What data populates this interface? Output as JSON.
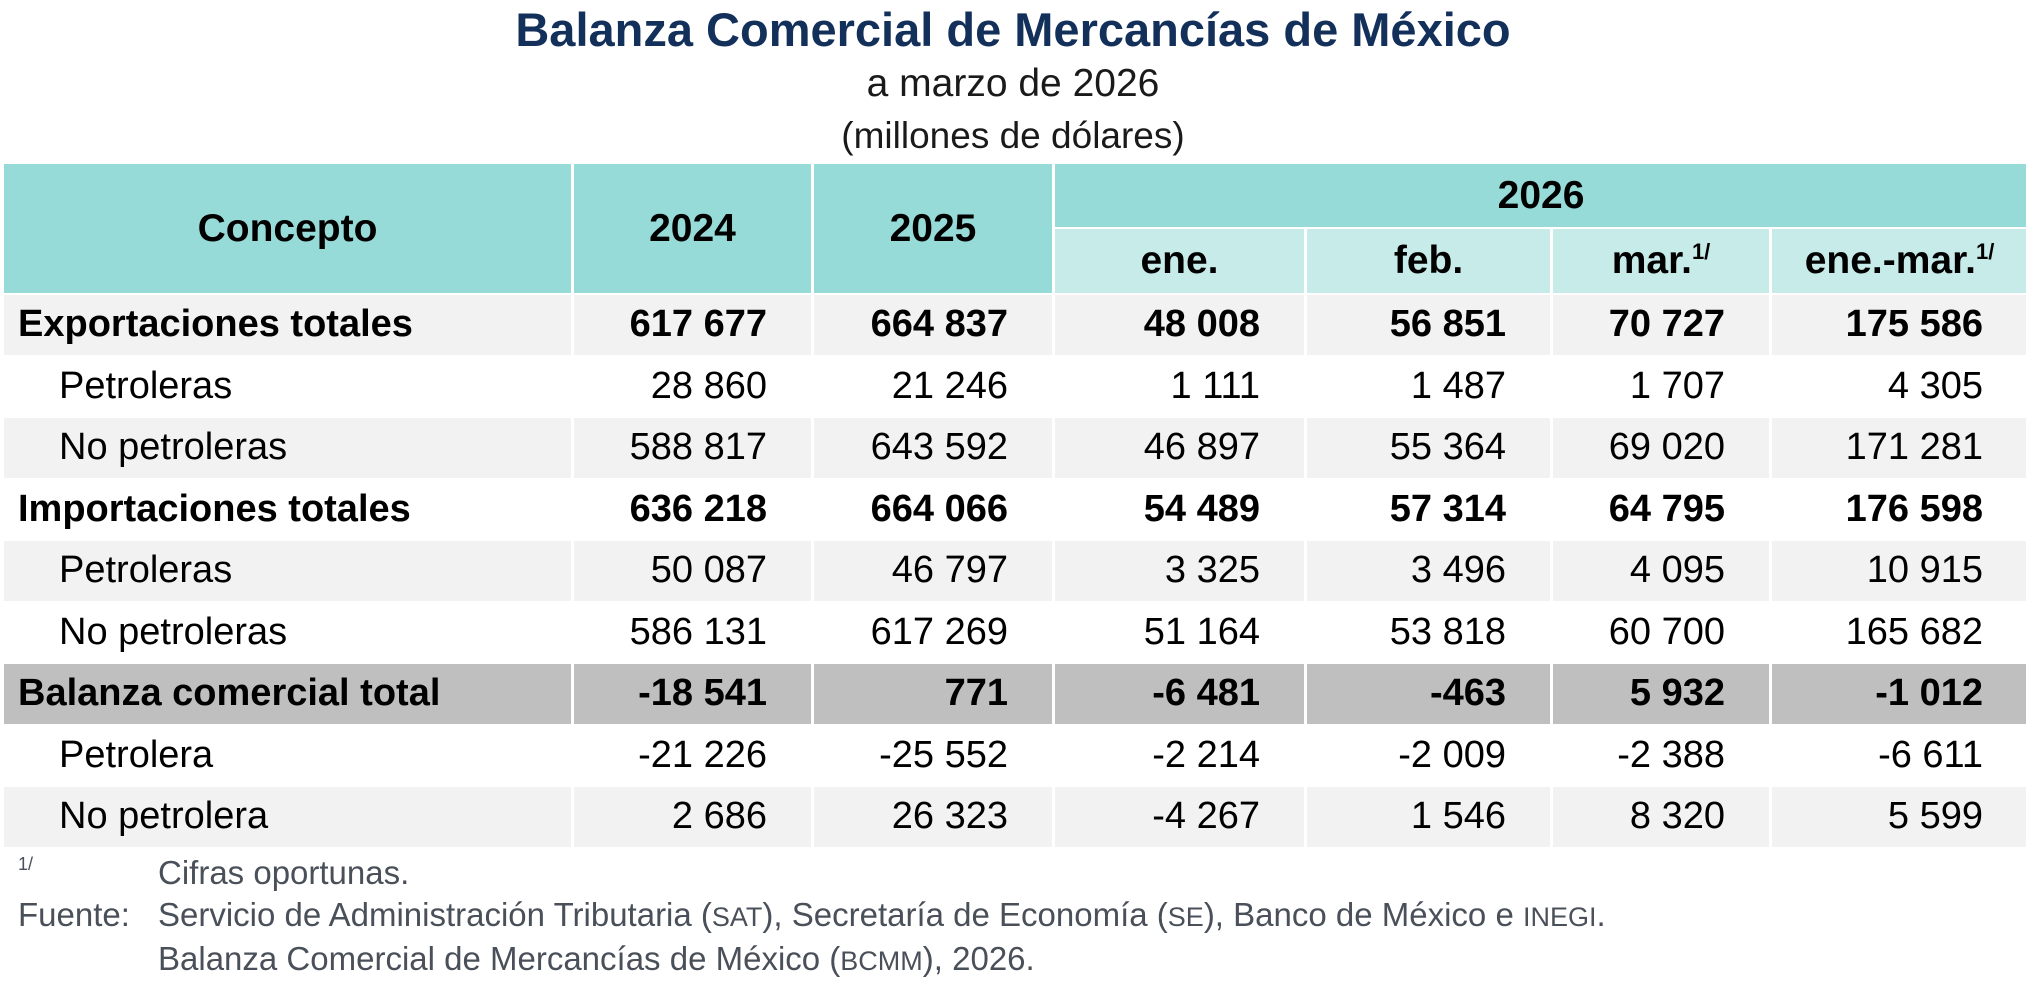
{
  "header": {
    "title": "Balanza Comercial de Mercancías de México",
    "subtitle": "a marzo de 2026",
    "units": "(millones de dólares)"
  },
  "table": {
    "col_concept": "Concepto",
    "col_2024": "2024",
    "col_2025": "2025",
    "col_2026": "2026",
    "months": [
      {
        "label": "ene.",
        "sup": ""
      },
      {
        "label": "feb.",
        "sup": ""
      },
      {
        "label": "mar.",
        "sup": "1/"
      },
      {
        "label": "ene.-mar.",
        "sup": "1/"
      }
    ],
    "rows": [
      {
        "concepto": "Exportaciones totales",
        "y2024": "617 677",
        "y2025": "664 837",
        "ene": "48 008",
        "feb": "56 851",
        "mar": "70 727",
        "ene_mar": "175 586"
      },
      {
        "concepto": "Petroleras",
        "y2024": "28 860",
        "y2025": "21 246",
        "ene": "1 111",
        "feb": "1 487",
        "mar": "1 707",
        "ene_mar": "4 305"
      },
      {
        "concepto": "No petroleras",
        "y2024": "588 817",
        "y2025": "643 592",
        "ene": "46 897",
        "feb": "55 364",
        "mar": "69 020",
        "ene_mar": "171 281"
      },
      {
        "concepto": "Importaciones totales",
        "y2024": "636 218",
        "y2025": "664 066",
        "ene": "54 489",
        "feb": "57 314",
        "mar": "64 795",
        "ene_mar": "176 598"
      },
      {
        "concepto": "Petroleras",
        "y2024": "50 087",
        "y2025": "46 797",
        "ene": "3 325",
        "feb": "3 496",
        "mar": "4 095",
        "ene_mar": "10 915"
      },
      {
        "concepto": "No petroleras",
        "y2024": "586 131",
        "y2025": "617 269",
        "ene": "51 164",
        "feb": "53 818",
        "mar": "60 700",
        "ene_mar": "165 682"
      },
      {
        "concepto": "Balanza comercial total",
        "y2024": "-18 541",
        "y2025": "771",
        "ene": "-6 481",
        "feb": "-463",
        "mar": "5 932",
        "ene_mar": "-1 012"
      },
      {
        "concepto": "Petrolera",
        "y2024": "-21 226",
        "y2025": "-25 552",
        "ene": "-2 214",
        "feb": "-2 009",
        "mar": "-2 388",
        "ene_mar": "-6 611"
      },
      {
        "concepto": "No petrolera",
        "y2024": "2 686",
        "y2025": "26 323",
        "ene": "-4 267",
        "feb": "1 546",
        "mar": "8 320",
        "ene_mar": "5 599"
      }
    ]
  },
  "notes": {
    "footnote_key": "1/",
    "footnote_text": "Cifras oportunas.",
    "source_key": "Fuente:",
    "source_line1_a": "Servicio de Administración Tributaria (",
    "source_line1_sat": "SAT",
    "source_line1_b": "), Secretaría de Economía (",
    "source_line1_se": "SE",
    "source_line1_c": "), Banco de México e ",
    "source_line1_inegi": "INEGI",
    "source_line1_d": ".",
    "source_line2_a": "Balanza Comercial de Mercancías de México (",
    "source_line2_bcmm": "BCMM",
    "source_line2_b": "), 2026."
  },
  "colors": {
    "title": "#13305a",
    "header_main": "#97dbd8",
    "header_sub": "#c7ebe9",
    "row_shade": "#f2f2f2",
    "row_balance": "#bfbfbf",
    "notes_text": "#4a5059"
  }
}
